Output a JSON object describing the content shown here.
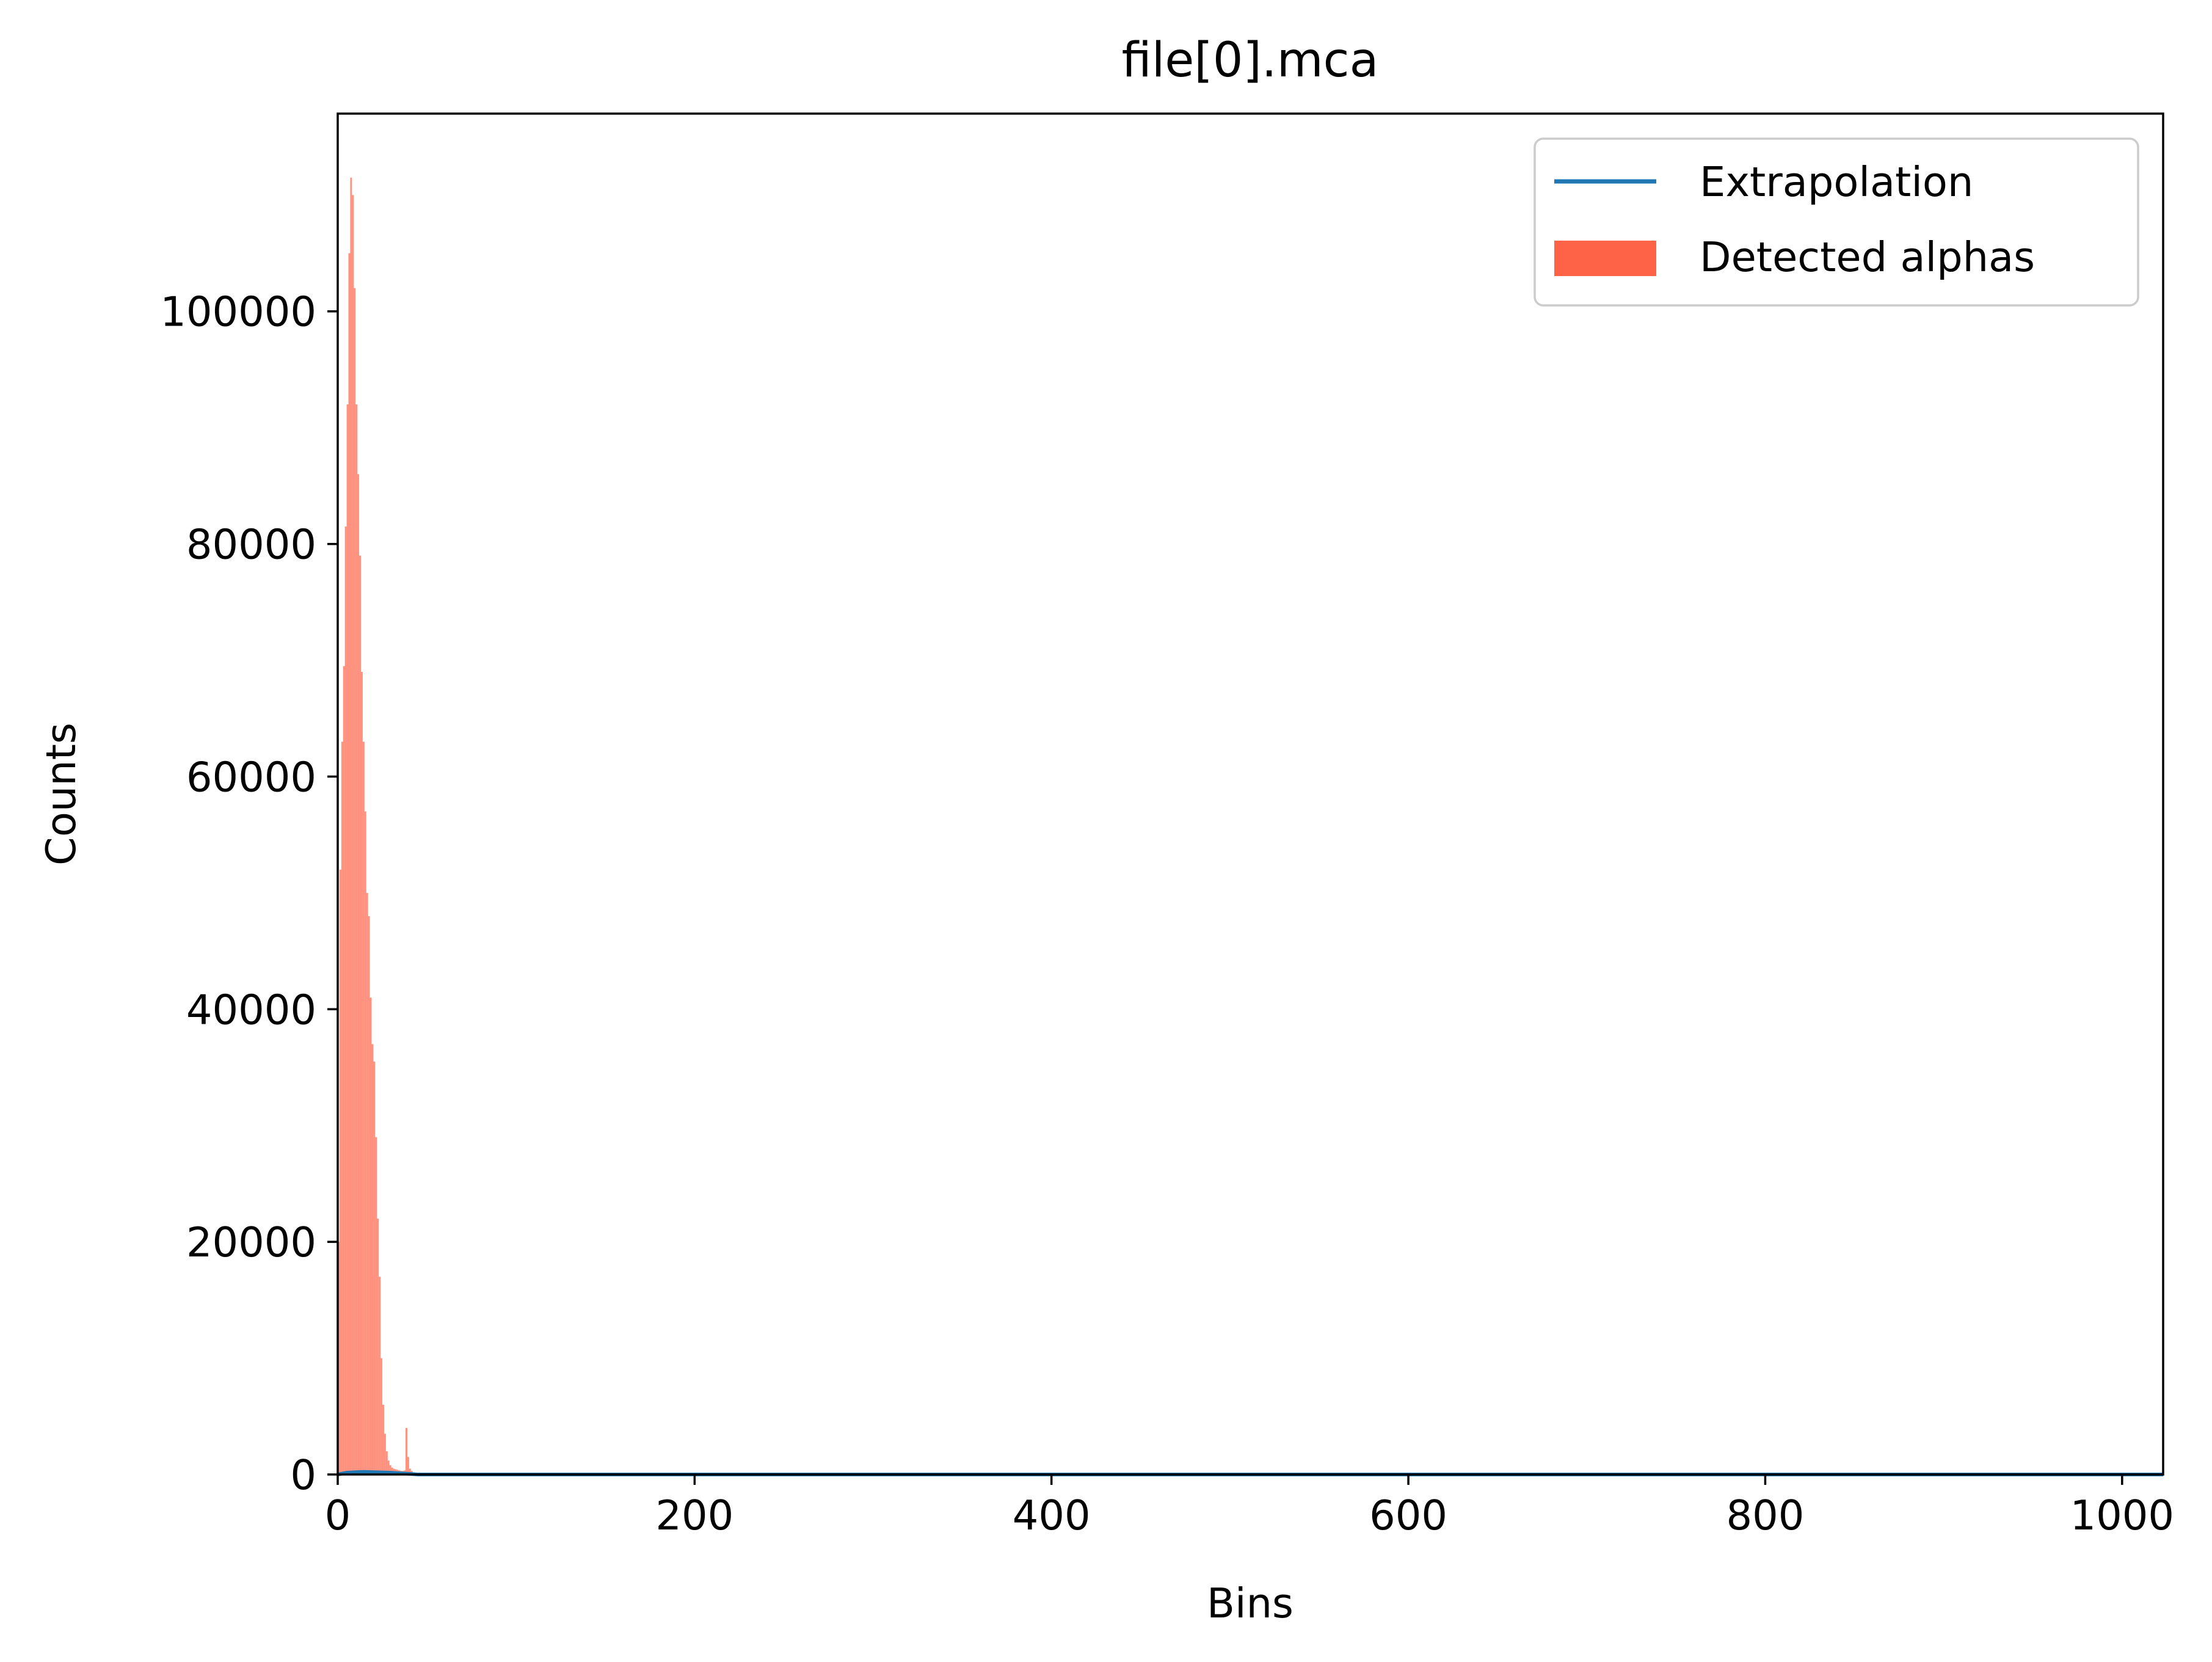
{
  "chart_data": {
    "type": "bar",
    "title": "file[0].mca",
    "xlabel": "Bins",
    "ylabel": "Counts",
    "xlim": [
      0,
      1023
    ],
    "ylim": [
      0,
      117000
    ],
    "xticks": [
      0,
      200,
      400,
      600,
      800,
      1000
    ],
    "yticks": [
      0,
      20000,
      40000,
      60000,
      80000,
      100000
    ],
    "xtick_labels": [
      "0",
      "200",
      "400",
      "600",
      "800",
      "1000"
    ],
    "ytick_labels": [
      "0",
      "20000",
      "40000",
      "60000",
      "80000",
      "100000"
    ],
    "legend_position": "top-right",
    "grid": false,
    "series": [
      {
        "name": "Extrapolation",
        "kind": "line",
        "color": "#1f77b4",
        "x": [
          0,
          5,
          10,
          15,
          20,
          25,
          30,
          35,
          40,
          45,
          1023
        ],
        "y": [
          0,
          150,
          200,
          220,
          200,
          180,
          150,
          100,
          60,
          0,
          0
        ]
      },
      {
        "name": "Detected alphas",
        "kind": "bar",
        "color": "#ff6347",
        "x": [
          0,
          1,
          2,
          3,
          4,
          5,
          6,
          7,
          8,
          9,
          10,
          11,
          12,
          13,
          14,
          15,
          16,
          17,
          18,
          19,
          20,
          21,
          22,
          23,
          24,
          25,
          26,
          27,
          28,
          29,
          30,
          31,
          32,
          33,
          34,
          35,
          36,
          37,
          38,
          39,
          40,
          41,
          42,
          43,
          44
        ],
        "y": [
          20000,
          52000,
          63000,
          69500,
          81500,
          92000,
          105000,
          111500,
          110000,
          102000,
          92000,
          86000,
          79000,
          69000,
          63000,
          57000,
          50000,
          48000,
          41000,
          37000,
          35500,
          29000,
          22000,
          17000,
          10000,
          6000,
          3500,
          2000,
          1200,
          800,
          600,
          500,
          450,
          400,
          350,
          300,
          300,
          350,
          4000,
          1500,
          500,
          300,
          150,
          80,
          0
        ]
      }
    ]
  }
}
